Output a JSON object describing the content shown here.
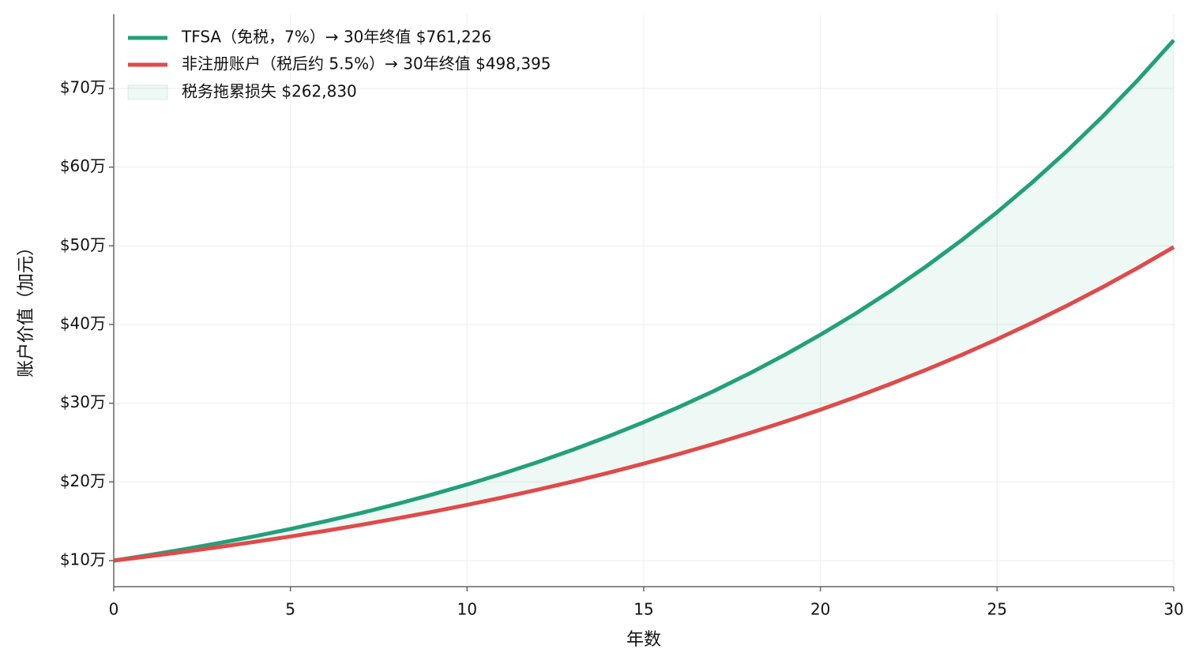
{
  "chart_data": {
    "type": "line",
    "xlabel": "年数",
    "ylabel": "账户价值（加元）",
    "x": [
      0,
      1,
      2,
      3,
      4,
      5,
      6,
      7,
      8,
      9,
      10,
      11,
      12,
      13,
      14,
      15,
      16,
      17,
      18,
      19,
      20,
      21,
      22,
      23,
      24,
      25,
      26,
      27,
      28,
      29,
      30
    ],
    "series": [
      {
        "name": "TFSA（免税，7%）→ 30年终值 $761,226",
        "color": "#22a079",
        "values": [
          100000,
          107000,
          114490,
          122504,
          131080,
          140255,
          150073,
          160578,
          171819,
          183846,
          196715,
          210485,
          225219,
          240985,
          257853,
          275903,
          295216,
          315882,
          337993,
          361653,
          386968,
          414056,
          443040,
          474053,
          507237,
          542743,
          580735,
          621387,
          664884,
          711426,
          761226
        ]
      },
      {
        "name": "非注册账户（税后约 5.5%）→ 30年终值 $498,395",
        "color": "#e04a4a",
        "values": [
          100000,
          105500,
          111303,
          117424,
          123882,
          130696,
          137884,
          145468,
          153469,
          161909,
          170814,
          180209,
          190121,
          200577,
          211609,
          223248,
          235526,
          248480,
          262147,
          276565,
          291776,
          307823,
          324754,
          342615,
          361459,
          381339,
          402313,
          424440,
          447784,
          472412,
          498395
        ]
      }
    ],
    "fill_between": {
      "name": "税务拖累损失 $262,830",
      "color": "#22a079"
    },
    "xlim": [
      0,
      30
    ],
    "xticks": [
      0,
      5,
      10,
      15,
      20,
      25,
      30
    ],
    "ylim": [
      66900,
      794300
    ],
    "yticks": [
      {
        "value": 100000,
        "label": "$10万"
      },
      {
        "value": 200000,
        "label": "$20万"
      },
      {
        "value": 300000,
        "label": "$30万"
      },
      {
        "value": 400000,
        "label": "$40万"
      },
      {
        "value": 500000,
        "label": "$50万"
      },
      {
        "value": 600000,
        "label": "$60万"
      },
      {
        "value": 700000,
        "label": "$70万"
      }
    ],
    "grid": true,
    "legend": "upper left"
  }
}
